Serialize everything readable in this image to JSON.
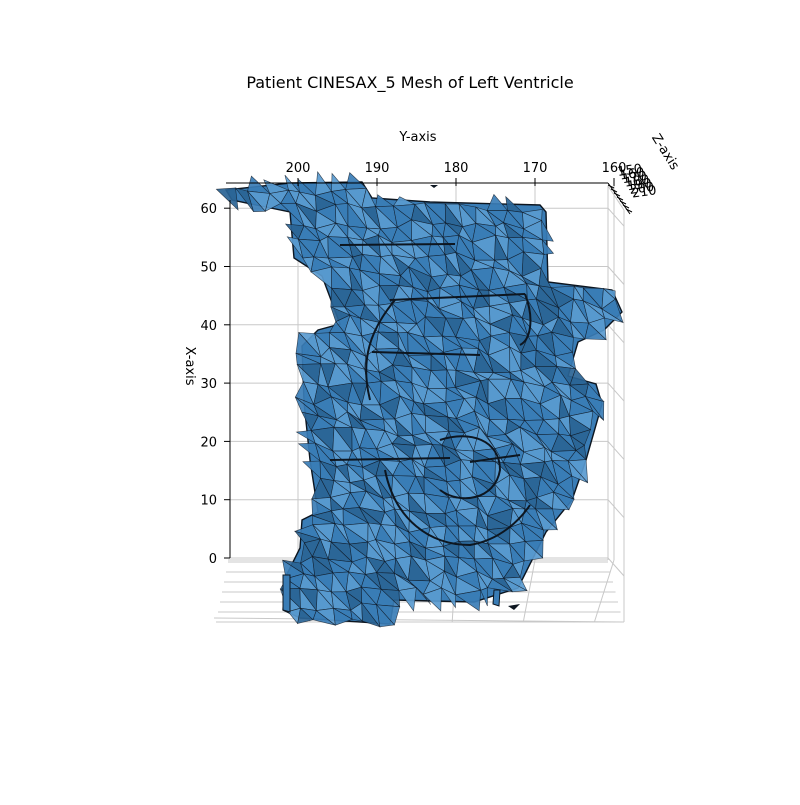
{
  "chart_data": {
    "type": "mesh3d",
    "title": "Patient CINESAX_5 Mesh of Left Ventricle",
    "xlabel": "X-axis",
    "ylabel": "Y-axis",
    "zlabel": "Z-axis",
    "x_ticks": [
      0,
      10,
      20,
      30,
      40,
      50,
      60
    ],
    "y_ticks": [
      200,
      190,
      180,
      170,
      160
    ],
    "z_ticks": [
      150,
      160,
      170,
      180,
      190,
      200,
      210
    ],
    "xlim": [
      -10,
      63
    ],
    "ylim": [
      205,
      158
    ],
    "zlim": [
      150,
      212
    ],
    "colors": {
      "face": "#3a7db6",
      "face_light": "#5a9bd0",
      "face_dark": "#2a6495",
      "edge": "#0d1620",
      "grid": "#c8c8c8",
      "axis": "#000000"
    }
  }
}
